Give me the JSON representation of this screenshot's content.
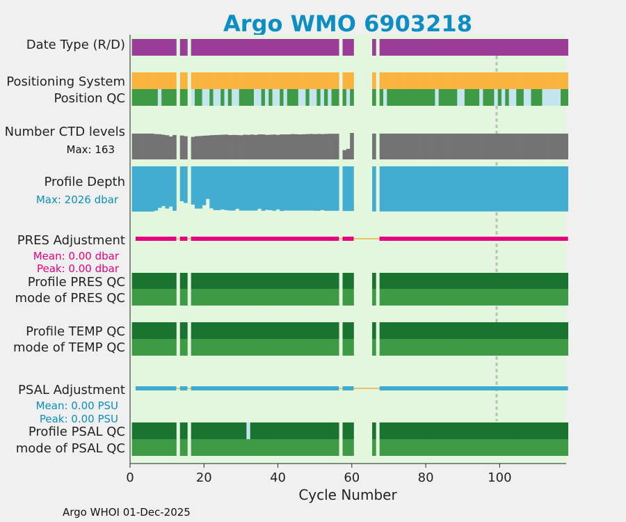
{
  "title": "Argo WMO 6903218",
  "footer": "Argo WHOI 01-Dec-2025",
  "colors": {
    "title": "#0a8ec4",
    "plot_bg": "#e2f7dd",
    "figure_bg": "#f0f0f0",
    "mode_r": "#9a3c98",
    "mode_d": "#f8c33c",
    "positioning": "#fbb33f",
    "qc_good": "#3e9a45",
    "qc_probably_good": "#c4e4ee",
    "qc_dark": "#1a7430",
    "ctd": "#737373",
    "depth": "#43acd1",
    "pres": "#e5007f",
    "psal": "#3eabd1",
    "connector": "#f0b040",
    "marker": "#bdbdbd"
  },
  "chart_data": {
    "type": "table",
    "xlabel": "Cycle Number",
    "xlim": [
      0,
      118
    ],
    "xticks": [
      0,
      20,
      40,
      60,
      80,
      100
    ],
    "marker_cycle": 100,
    "missing_cycles": [
      13,
      16,
      57,
      61,
      62,
      63,
      64,
      65,
      67
    ],
    "rows": {
      "data_type": {
        "label": "Date Type (R/D)",
        "mode": "R"
      },
      "positioning": {
        "label": "Positioning System"
      },
      "position_qc": {
        "label": "Position QC",
        "probably_good_cycles": [
          8,
          17,
          20,
          21,
          23,
          24,
          26,
          28,
          29,
          34,
          35,
          37,
          39,
          40,
          42,
          46,
          47,
          49,
          50,
          52,
          54,
          59,
          67,
          69,
          83,
          89,
          90,
          95,
          99,
          101,
          103,
          104,
          107,
          108,
          112,
          113,
          114,
          115,
          116
        ]
      },
      "ctd_levels": {
        "label": "Number CTD levels",
        "max_label": "Max: 163",
        "max": 163,
        "values": [
          {
            "cycle": 1,
            "value": 159
          },
          {
            "cycle": 2,
            "value": 159
          },
          {
            "cycle": 3,
            "value": 159
          },
          {
            "cycle": 4,
            "value": 159
          },
          {
            "cycle": 5,
            "value": 159
          },
          {
            "cycle": 6,
            "value": 159
          },
          {
            "cycle": 7,
            "value": 156
          },
          {
            "cycle": 8,
            "value": 155
          },
          {
            "cycle": 9,
            "value": 152
          },
          {
            "cycle": 10,
            "value": 149
          },
          {
            "cycle": 11,
            "value": 141
          },
          {
            "cycle": 12,
            "value": 150
          },
          {
            "cycle": 14,
            "value": 147
          },
          {
            "cycle": 15,
            "value": 143
          },
          {
            "cycle": 17,
            "value": 139
          },
          {
            "cycle": 18,
            "value": 143
          },
          {
            "cycle": 19,
            "value": 144
          },
          {
            "cycle": 20,
            "value": 146
          },
          {
            "cycle": 21,
            "value": 147
          },
          {
            "cycle": 22,
            "value": 149
          },
          {
            "cycle": 23,
            "value": 150
          },
          {
            "cycle": 24,
            "value": 151
          },
          {
            "cycle": 25,
            "value": 152
          },
          {
            "cycle": 26,
            "value": 153
          },
          {
            "cycle": 27,
            "value": 150
          },
          {
            "cycle": 28,
            "value": 151
          },
          {
            "cycle": 29,
            "value": 150
          },
          {
            "cycle": 30,
            "value": 149
          },
          {
            "cycle": 31,
            "value": 152
          },
          {
            "cycle": 32,
            "value": 151
          },
          {
            "cycle": 33,
            "value": 153
          },
          {
            "cycle": 34,
            "value": 151
          },
          {
            "cycle": 35,
            "value": 154
          },
          {
            "cycle": 36,
            "value": 154
          },
          {
            "cycle": 37,
            "value": 151
          },
          {
            "cycle": 38,
            "value": 152
          },
          {
            "cycle": 39,
            "value": 153
          },
          {
            "cycle": 40,
            "value": 151
          },
          {
            "cycle": 41,
            "value": 154
          },
          {
            "cycle": 42,
            "value": 154
          },
          {
            "cycle": 43,
            "value": 154
          },
          {
            "cycle": 44,
            "value": 156
          },
          {
            "cycle": 45,
            "value": 155
          },
          {
            "cycle": 46,
            "value": 154
          },
          {
            "cycle": 47,
            "value": 155
          },
          {
            "cycle": 48,
            "value": 156
          },
          {
            "cycle": 49,
            "value": 157
          },
          {
            "cycle": 50,
            "value": 156
          },
          {
            "cycle": 51,
            "value": 157
          },
          {
            "cycle": 52,
            "value": 156
          },
          {
            "cycle": 53,
            "value": 157
          },
          {
            "cycle": 54,
            "value": 158
          },
          {
            "cycle": 55,
            "value": 158
          },
          {
            "cycle": 56,
            "value": 158
          },
          {
            "cycle": 58,
            "value": 57
          },
          {
            "cycle": 59,
            "value": 65
          },
          {
            "cycle": 60,
            "value": 163
          },
          {
            "cycle": 66,
            "value": 159
          },
          {
            "cycle": 68,
            "value": 159
          },
          {
            "cycle": 69,
            "value": 159
          },
          {
            "cycle": 70,
            "value": 159
          },
          {
            "cycle": 71,
            "value": 159
          },
          {
            "cycle": 72,
            "value": 159
          },
          {
            "cycle": 73,
            "value": 159
          },
          {
            "cycle": 74,
            "value": 159
          },
          {
            "cycle": 75,
            "value": 159
          },
          {
            "cycle": 76,
            "value": 159
          },
          {
            "cycle": 77,
            "value": 159
          },
          {
            "cycle": 78,
            "value": 159
          },
          {
            "cycle": 79,
            "value": 159
          },
          {
            "cycle": 80,
            "value": 159
          },
          {
            "cycle": 81,
            "value": 159
          },
          {
            "cycle": 82,
            "value": 159
          },
          {
            "cycle": 83,
            "value": 159
          },
          {
            "cycle": 84,
            "value": 159
          },
          {
            "cycle": 85,
            "value": 159
          },
          {
            "cycle": 86,
            "value": 159
          },
          {
            "cycle": 87,
            "value": 159
          },
          {
            "cycle": 88,
            "value": 159
          },
          {
            "cycle": 89,
            "value": 159
          },
          {
            "cycle": 90,
            "value": 159
          },
          {
            "cycle": 91,
            "value": 159
          },
          {
            "cycle": 92,
            "value": 159
          },
          {
            "cycle": 93,
            "value": 159
          },
          {
            "cycle": 94,
            "value": 159
          },
          {
            "cycle": 95,
            "value": 159
          },
          {
            "cycle": 96,
            "value": 159
          },
          {
            "cycle": 97,
            "value": 159
          },
          {
            "cycle": 98,
            "value": 159
          },
          {
            "cycle": 99,
            "value": 159
          },
          {
            "cycle": 100,
            "value": 159
          },
          {
            "cycle": 101,
            "value": 159
          },
          {
            "cycle": 102,
            "value": 159
          },
          {
            "cycle": 103,
            "value": 159
          },
          {
            "cycle": 104,
            "value": 159
          },
          {
            "cycle": 105,
            "value": 159
          },
          {
            "cycle": 106,
            "value": 159
          },
          {
            "cycle": 107,
            "value": 159
          },
          {
            "cycle": 108,
            "value": 159
          },
          {
            "cycle": 109,
            "value": 159
          },
          {
            "cycle": 110,
            "value": 159
          },
          {
            "cycle": 111,
            "value": 159
          },
          {
            "cycle": 112,
            "value": 159
          },
          {
            "cycle": 113,
            "value": 159
          },
          {
            "cycle": 114,
            "value": 159
          },
          {
            "cycle": 115,
            "value": 159
          },
          {
            "cycle": 116,
            "value": 159
          },
          {
            "cycle": 117,
            "value": 159
          },
          {
            "cycle": 118,
            "value": 159
          }
        ]
      },
      "profile_depth": {
        "label": "Profile Depth",
        "max_label": "Max: 2026 dbar",
        "max": 2026,
        "values": [
          {
            "cycle": 1,
            "value": 2026
          },
          {
            "cycle": 2,
            "value": 2026
          },
          {
            "cycle": 3,
            "value": 2026
          },
          {
            "cycle": 4,
            "value": 2026
          },
          {
            "cycle": 5,
            "value": 2026
          },
          {
            "cycle": 6,
            "value": 2026
          },
          {
            "cycle": 7,
            "value": 1982
          },
          {
            "cycle": 8,
            "value": 1860
          },
          {
            "cycle": 9,
            "value": 1780
          },
          {
            "cycle": 10,
            "value": 1890
          },
          {
            "cycle": 11,
            "value": 1800
          },
          {
            "cycle": 12,
            "value": 1990
          },
          {
            "cycle": 14,
            "value": 1560
          },
          {
            "cycle": 15,
            "value": 1640
          },
          {
            "cycle": 17,
            "value": 1710
          },
          {
            "cycle": 18,
            "value": 1890
          },
          {
            "cycle": 19,
            "value": 1890
          },
          {
            "cycle": 20,
            "value": 1740
          },
          {
            "cycle": 21,
            "value": 1460
          },
          {
            "cycle": 22,
            "value": 1880
          },
          {
            "cycle": 23,
            "value": 1960
          },
          {
            "cycle": 24,
            "value": 1960
          },
          {
            "cycle": 25,
            "value": 1930
          },
          {
            "cycle": 26,
            "value": 1960
          },
          {
            "cycle": 27,
            "value": 1980
          },
          {
            "cycle": 28,
            "value": 1980
          },
          {
            "cycle": 29,
            "value": 1900
          },
          {
            "cycle": 30,
            "value": 1980
          },
          {
            "cycle": 31,
            "value": 1980
          },
          {
            "cycle": 32,
            "value": 1980
          },
          {
            "cycle": 33,
            "value": 1980
          },
          {
            "cycle": 34,
            "value": 1980
          },
          {
            "cycle": 35,
            "value": 1900
          },
          {
            "cycle": 36,
            "value": 1990
          },
          {
            "cycle": 37,
            "value": 1950
          },
          {
            "cycle": 38,
            "value": 1960
          },
          {
            "cycle": 39,
            "value": 1990
          },
          {
            "cycle": 40,
            "value": 1930
          },
          {
            "cycle": 41,
            "value": 2000
          },
          {
            "cycle": 42,
            "value": 1980
          },
          {
            "cycle": 43,
            "value": 1980
          },
          {
            "cycle": 44,
            "value": 1980
          },
          {
            "cycle": 45,
            "value": 1980
          },
          {
            "cycle": 46,
            "value": 1980
          },
          {
            "cycle": 47,
            "value": 1980
          },
          {
            "cycle": 48,
            "value": 1980
          },
          {
            "cycle": 49,
            "value": 1980
          },
          {
            "cycle": 50,
            "value": 1990
          },
          {
            "cycle": 51,
            "value": 1990
          },
          {
            "cycle": 52,
            "value": 1960
          },
          {
            "cycle": 53,
            "value": 1990
          },
          {
            "cycle": 54,
            "value": 1990
          },
          {
            "cycle": 55,
            "value": 1990
          },
          {
            "cycle": 56,
            "value": 1990
          },
          {
            "cycle": 58,
            "value": 2000
          },
          {
            "cycle": 59,
            "value": 2000
          },
          {
            "cycle": 60,
            "value": 2000
          },
          {
            "cycle": 66,
            "value": 2020
          },
          {
            "cycle": 68,
            "value": 2020
          },
          {
            "cycle": 69,
            "value": 2020
          },
          {
            "cycle": 70,
            "value": 2020
          },
          {
            "cycle": 71,
            "value": 2020
          },
          {
            "cycle": 72,
            "value": 2020
          },
          {
            "cycle": 73,
            "value": 2020
          },
          {
            "cycle": 74,
            "value": 2020
          },
          {
            "cycle": 75,
            "value": 2020
          },
          {
            "cycle": 76,
            "value": 2020
          },
          {
            "cycle": 77,
            "value": 2020
          },
          {
            "cycle": 78,
            "value": 2020
          },
          {
            "cycle": 79,
            "value": 2020
          },
          {
            "cycle": 80,
            "value": 2020
          },
          {
            "cycle": 81,
            "value": 2020
          },
          {
            "cycle": 82,
            "value": 2020
          },
          {
            "cycle": 83,
            "value": 2020
          },
          {
            "cycle": 84,
            "value": 2020
          },
          {
            "cycle": 85,
            "value": 2020
          },
          {
            "cycle": 86,
            "value": 2020
          },
          {
            "cycle": 87,
            "value": 2020
          },
          {
            "cycle": 88,
            "value": 2020
          },
          {
            "cycle": 89,
            "value": 2020
          },
          {
            "cycle": 90,
            "value": 2020
          },
          {
            "cycle": 91,
            "value": 2020
          },
          {
            "cycle": 92,
            "value": 2020
          },
          {
            "cycle": 93,
            "value": 2020
          },
          {
            "cycle": 94,
            "value": 2020
          },
          {
            "cycle": 95,
            "value": 2020
          },
          {
            "cycle": 96,
            "value": 2020
          },
          {
            "cycle": 97,
            "value": 2020
          },
          {
            "cycle": 98,
            "value": 2020
          },
          {
            "cycle": 99,
            "value": 2020
          },
          {
            "cycle": 100,
            "value": 2020
          },
          {
            "cycle": 101,
            "value": 2020
          },
          {
            "cycle": 102,
            "value": 2020
          },
          {
            "cycle": 103,
            "value": 2020
          },
          {
            "cycle": 104,
            "value": 2020
          },
          {
            "cycle": 105,
            "value": 2020
          },
          {
            "cycle": 106,
            "value": 2020
          },
          {
            "cycle": 107,
            "value": 2020
          },
          {
            "cycle": 108,
            "value": 2020
          },
          {
            "cycle": 109,
            "value": 2020
          },
          {
            "cycle": 110,
            "value": 2020
          },
          {
            "cycle": 111,
            "value": 2020
          },
          {
            "cycle": 112,
            "value": 2020
          },
          {
            "cycle": 113,
            "value": 2020
          },
          {
            "cycle": 114,
            "value": 2020
          },
          {
            "cycle": 115,
            "value": 2020
          },
          {
            "cycle": 116,
            "value": 2020
          },
          {
            "cycle": 117,
            "value": 2020
          },
          {
            "cycle": 118,
            "value": 2020
          }
        ]
      },
      "pres_adjustment": {
        "label": "PRES Adjustment",
        "mean_label": "Mean: 0.00 dbar",
        "peak_label": "Peak: 0.00 dbar",
        "mean": 0.0,
        "peak": 0.0,
        "segments": [
          [
            2,
            12
          ],
          [
            14,
            15
          ],
          [
            17,
            56
          ],
          [
            58,
            60
          ],
          [
            68,
            118
          ]
        ]
      },
      "profile_pres_qc": {
        "label": "Profile PRES QC"
      },
      "mode_pres_qc": {
        "label": "mode of PRES QC"
      },
      "profile_temp_qc": {
        "label": "Profile TEMP QC"
      },
      "mode_temp_qc": {
        "label": "mode of TEMP QC"
      },
      "psal_adjustment": {
        "label": "PSAL Adjustment",
        "mean_label": "Mean: 0.00 PSU",
        "peak_label": "Peak: 0.00 PSU",
        "mean": 0.0,
        "peak": 0.0,
        "segments": [
          [
            2,
            12
          ],
          [
            14,
            15
          ],
          [
            17,
            56
          ],
          [
            58,
            60
          ],
          [
            68,
            118
          ]
        ]
      },
      "profile_psal_qc": {
        "label": "Profile PSAL QC",
        "light_cycles": [
          32
        ]
      },
      "mode_psal_qc": {
        "label": "mode of PSAL QC"
      }
    }
  }
}
